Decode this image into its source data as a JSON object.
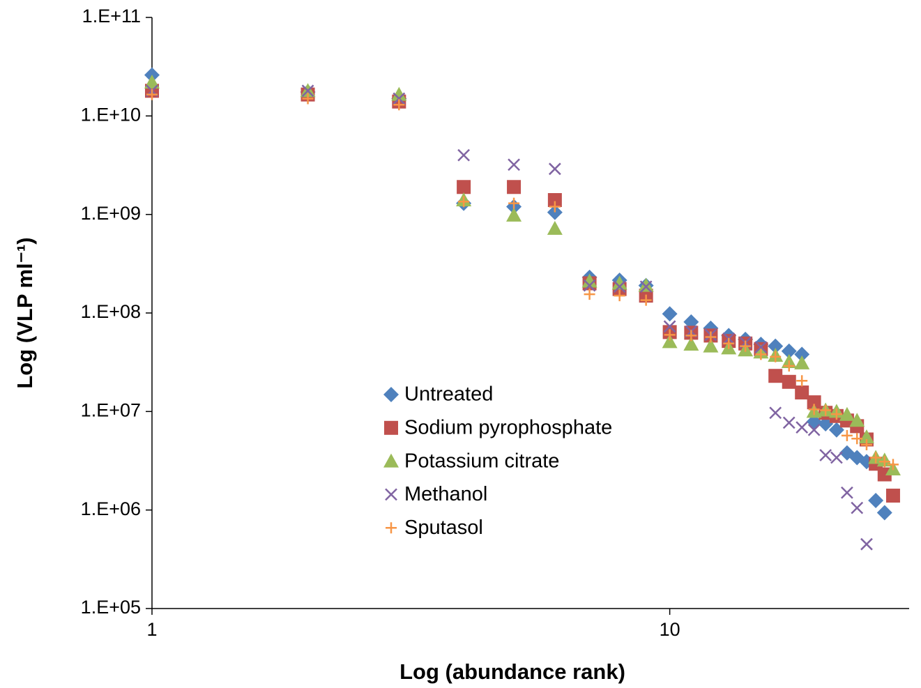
{
  "chart_data": {
    "type": "scatter",
    "xlabel": "Log (abundance rank)",
    "ylabel": "Log (VLP ml⁻¹)",
    "xscale": "log",
    "yscale": "log",
    "xlim": [
      1,
      29
    ],
    "ylim": [
      100000,
      100000000000
    ],
    "xticks": [
      1,
      10
    ],
    "yticks": [
      {
        "value": 100000,
        "label": "1.E+05"
      },
      {
        "value": 1000000,
        "label": "1.E+06"
      },
      {
        "value": 10000000,
        "label": "1.E+07"
      },
      {
        "value": 100000000,
        "label": "1.E+08"
      },
      {
        "value": 1000000000,
        "label": "1.E+09"
      },
      {
        "value": 10000000000,
        "label": "1.E+10"
      },
      {
        "value": 100000000000,
        "label": "1.E+11"
      }
    ],
    "grid": false,
    "legend": "lower-center",
    "x": [
      1,
      2,
      3,
      4,
      5,
      6,
      7,
      8,
      9,
      10,
      11,
      12,
      13,
      14,
      15,
      16,
      17,
      18,
      19,
      20,
      21,
      22,
      23,
      24,
      25,
      26,
      27
    ],
    "series": [
      {
        "name": "Untreated",
        "color": "#4f81bd",
        "marker": "diamond",
        "values": [
          26000000000,
          17500000000,
          15000000000,
          1300000000,
          1200000000,
          1050000000,
          230000000,
          215000000,
          190000000,
          98000000,
          81000000,
          70000000,
          59000000,
          54000000,
          48000000,
          46000000,
          41000000,
          38000000,
          7900000,
          7500000,
          6500000,
          3800000,
          3400000,
          3100000,
          1250000,
          940000,
          null
        ]
      },
      {
        "name": "Sodium pyrophosphate",
        "color": "#c0504d",
        "marker": "square",
        "values": [
          18000000000,
          16500000000,
          14000000000,
          1900000000,
          1900000000,
          1400000000,
          200000000,
          175000000,
          150000000,
          64000000,
          63000000,
          59000000,
          52000000,
          49000000,
          43000000,
          23000000,
          20000000,
          15600000,
          12400000,
          9700000,
          9000000,
          8100000,
          7100000,
          5200000,
          2950000,
          2300000,
          1400000
        ]
      },
      {
        "name": "Potassium citrate",
        "color": "#9bbb59",
        "marker": "triangle",
        "values": [
          22000000000,
          18000000000,
          16500000000,
          1400000000,
          980000000,
          720000000,
          210000000,
          200000000,
          190000000,
          51000000,
          48000000,
          46000000,
          44000000,
          42000000,
          40000000,
          37000000,
          32000000,
          31000000,
          10000000,
          10300000,
          10000000,
          9300000,
          8100000,
          5500000,
          3400000,
          3200000,
          2600000
        ]
      },
      {
        "name": "Methanol",
        "color": "#8064a2",
        "marker": "x",
        "values": [
          18000000000,
          18000000000,
          15000000000,
          4000000000,
          3200000000,
          2900000000,
          190000000,
          185000000,
          185000000,
          73000000,
          65000000,
          60000000,
          55000000,
          50000000,
          45000000,
          9700000,
          7700000,
          6900000,
          6500000,
          3600000,
          3400000,
          1500000,
          1050000,
          450000,
          null,
          null,
          null
        ]
      },
      {
        "name": "Sputasol",
        "color": "#f79646",
        "marker": "plus",
        "values": [
          16500000000,
          15000000000,
          13000000000,
          1350000000,
          1300000000,
          1200000000,
          155000000,
          150000000,
          135000000,
          60000000,
          59000000,
          57000000,
          49000000,
          46000000,
          38000000,
          36000000,
          29000000,
          20500000,
          10500000,
          10300000,
          9400000,
          5700000,
          5300000,
          4600000,
          3400000,
          3100000,
          2900000
        ]
      }
    ]
  }
}
